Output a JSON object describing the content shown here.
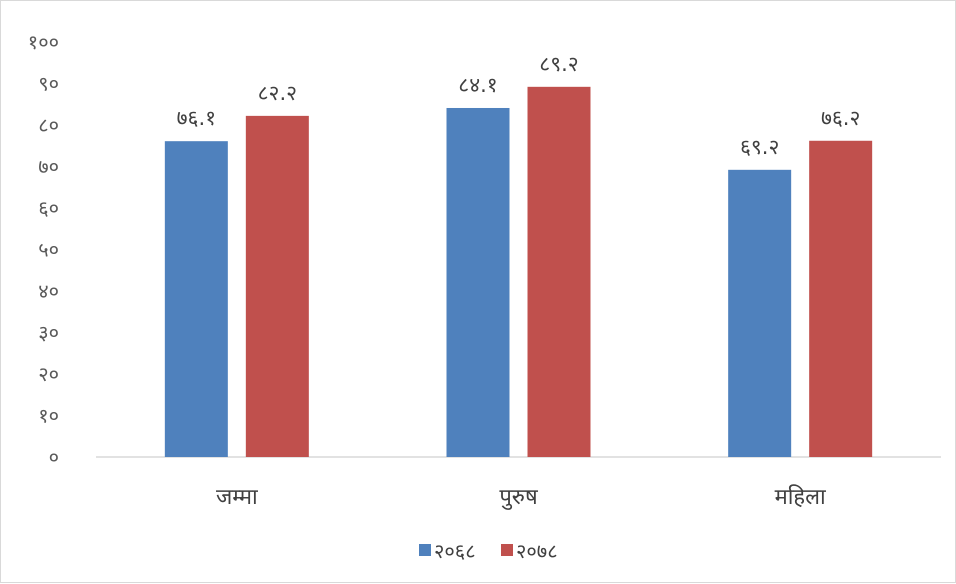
{
  "chart_data": {
    "type": "bar",
    "categories": [
      "जम्मा",
      "पुरुष",
      "महिला"
    ],
    "series": [
      {
        "name": "२०६८",
        "color": "#4f81bd",
        "values": [
          76.1,
          84.1,
          69.2
        ],
        "labels": [
          "७६.१",
          "८४.१",
          "६९.२"
        ]
      },
      {
        "name": "२०७८",
        "color": "#c0504d",
        "values": [
          82.2,
          89.2,
          76.2
        ],
        "labels": [
          "८२.२",
          "८९.२",
          "७६.२"
        ]
      }
    ],
    "ylim": [
      0,
      100
    ],
    "y_ticks": [
      0,
      10,
      20,
      30,
      40,
      50,
      60,
      70,
      80,
      90,
      100
    ],
    "y_tick_labels": [
      "०",
      "१०",
      "२०",
      "३०",
      "४०",
      "५०",
      "६०",
      "७०",
      "८०",
      "९०",
      "१००"
    ],
    "grid": false,
    "legend_position": "bottom"
  }
}
